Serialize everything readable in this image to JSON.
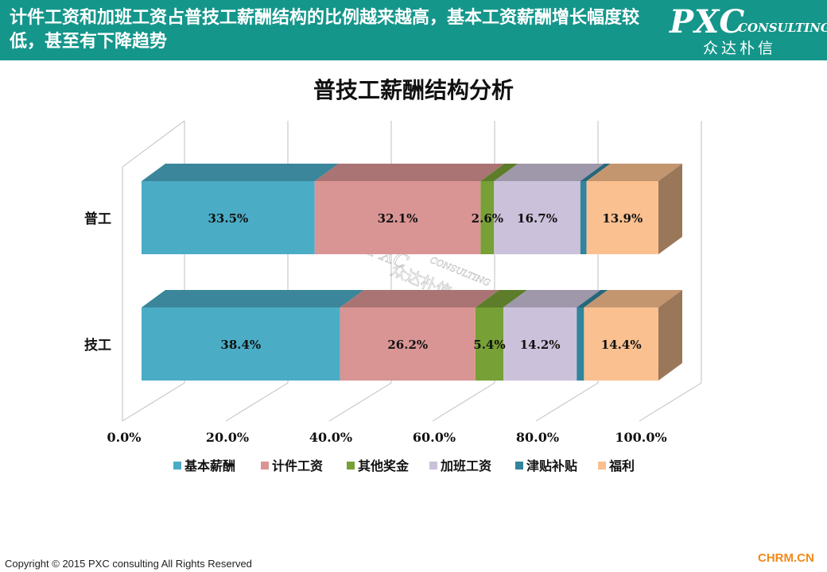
{
  "header": {
    "title": "计件工资和加班工资占普技工薪酬结构的比例越来越高，基本工资薪酬增长幅度较低，甚至有下降趋势",
    "logo_main": "PXC",
    "logo_sub": "CONSULTING",
    "logo_cn": "众达朴信"
  },
  "chart_data": {
    "type": "bar",
    "orientation": "horizontal",
    "stacked": "100%",
    "title": "普技工薪酬结构分析",
    "categories": [
      "普工",
      "技工"
    ],
    "series": [
      {
        "name": "基本薪酬",
        "values": [
          33.5,
          38.4
        ],
        "labels": [
          "33.5%",
          "38.4%"
        ],
        "color": "#4bacc6"
      },
      {
        "name": "计件工资",
        "values": [
          32.1,
          26.2
        ],
        "labels": [
          "32.1%",
          "26.2%"
        ],
        "color": "#d99594"
      },
      {
        "name": "其他奖金",
        "values": [
          2.6,
          5.4
        ],
        "labels": [
          "2.6%",
          "5.4%"
        ],
        "color": "#77a036"
      },
      {
        "name": "加班工资",
        "values": [
          16.7,
          14.2
        ],
        "labels": [
          "16.7%",
          "14.2%"
        ],
        "color": "#ccc1da"
      },
      {
        "name": "津贴补贴",
        "values": [
          1.2,
          1.4
        ],
        "labels": [
          "",
          ""
        ],
        "color": "#31849b"
      },
      {
        "name": "福利",
        "values": [
          13.9,
          14.4
        ],
        "labels": [
          "13.9%",
          "14.4%"
        ],
        "color": "#fac090"
      }
    ],
    "x_ticks": [
      "0.0%",
      "20.0%",
      "40.0%",
      "60.0%",
      "80.0%",
      "100.0%"
    ],
    "xlim": [
      0,
      100
    ],
    "legend": "bottom",
    "grid": true
  },
  "watermark": {
    "main": "PXC",
    "sub": "CONSULTING",
    "cn": "众达朴信"
  },
  "footer": {
    "copyright": "Copyright © 2015  PXC consulting All Rights Reserved",
    "site": "CHRM.CN"
  }
}
